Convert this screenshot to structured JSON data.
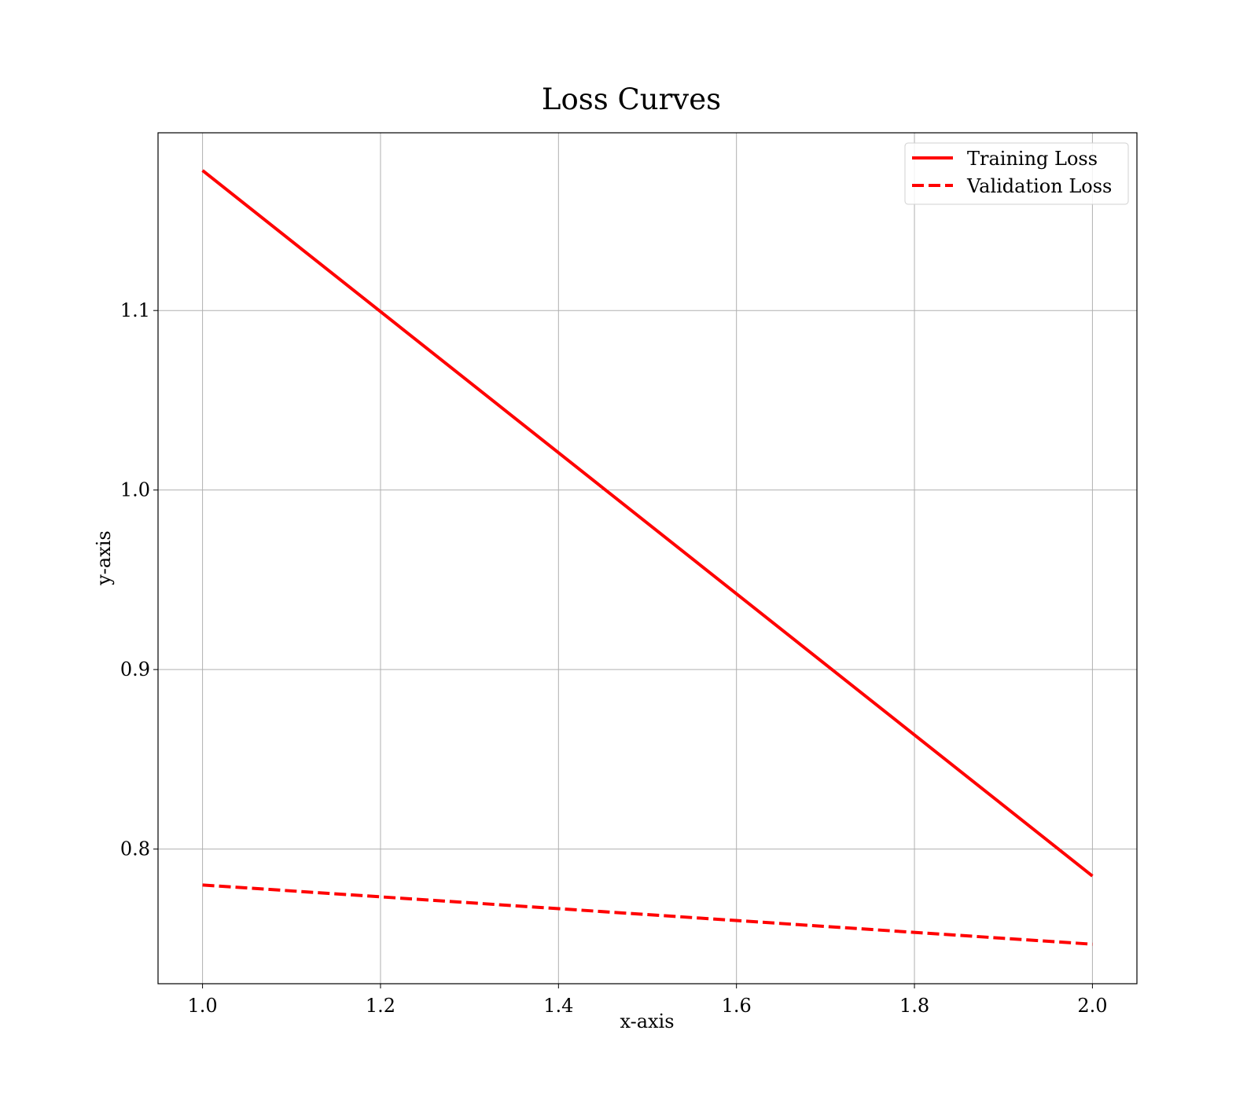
{
  "chart_data": {
    "type": "line",
    "title": "Loss Curves",
    "xlabel": "x-axis",
    "ylabel": "y-axis",
    "xlim": [
      0.95,
      2.05
    ],
    "ylim": [
      0.725,
      1.199
    ],
    "x_ticks": [
      1.0,
      1.2,
      1.4,
      1.6,
      1.8,
      2.0
    ],
    "x_tick_labels": [
      "1.0",
      "1.2",
      "1.4",
      "1.6",
      "1.8",
      "2.0"
    ],
    "y_ticks": [
      0.8,
      0.9,
      1.0,
      1.1
    ],
    "y_tick_labels": [
      "0.8",
      "0.9",
      "1.0",
      "1.1"
    ],
    "grid": true,
    "legend_position": "top-right",
    "series": [
      {
        "name": "Training Loss",
        "x": [
          1.0,
          2.0
        ],
        "y": [
          1.178,
          0.785
        ],
        "color": "#ff0000",
        "style": "solid"
      },
      {
        "name": "Validation Loss",
        "x": [
          1.0,
          2.0
        ],
        "y": [
          0.78,
          0.747
        ],
        "color": "#ff0000",
        "style": "dashed"
      }
    ]
  }
}
